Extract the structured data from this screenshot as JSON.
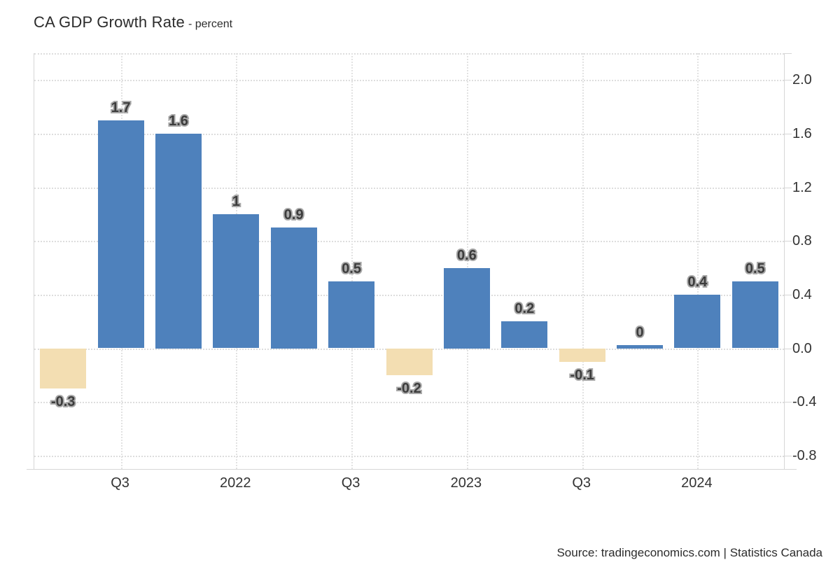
{
  "header": {
    "title": "CA GDP Growth Rate",
    "subtitle": "- percent"
  },
  "footer": {
    "source": "Source: tradingeconomics.com | Statistics Canada"
  },
  "chart_data": {
    "type": "bar",
    "title": "CA GDP Growth Rate",
    "subtitle": "percent",
    "values": [
      -0.3,
      1.7,
      1.6,
      1,
      0.9,
      0.5,
      -0.2,
      0.6,
      0.2,
      -0.1,
      0,
      0.4,
      0.5
    ],
    "bar_labels": [
      "-0.3",
      "1.7",
      "1.6",
      "1",
      "0.9",
      "0.5",
      "-0.2",
      "0.6",
      "0.2",
      "-0.1",
      "0",
      "0.4",
      "0.5"
    ],
    "x_ticks": [
      {
        "slot": 1,
        "label": "Q3"
      },
      {
        "slot": 3,
        "label": "2022"
      },
      {
        "slot": 5,
        "label": "Q3"
      },
      {
        "slot": 7,
        "label": "2023"
      },
      {
        "slot": 9,
        "label": "Q3"
      },
      {
        "slot": 11,
        "label": "2024"
      }
    ],
    "y_ticks": [
      2.0,
      1.6,
      1.2,
      0.8,
      0.4,
      0.0,
      -0.4,
      -0.8
    ],
    "y_tick_labels": [
      "2.0",
      "1.6",
      "1.2",
      "0.8",
      "0.4",
      "0.0",
      "-0.4",
      "-0.8"
    ],
    "ylim": [
      -0.9,
      2.2
    ],
    "grid": true,
    "legend": "none",
    "colors": {
      "positive": "#4e81bc",
      "negative": "#f3deb2",
      "grid": "#dddddd",
      "axis_border": "#d6d6d6",
      "label_fill": "#3c3c3c",
      "label_outline": "#a8a8a8",
      "axis_text": "#333333"
    }
  }
}
